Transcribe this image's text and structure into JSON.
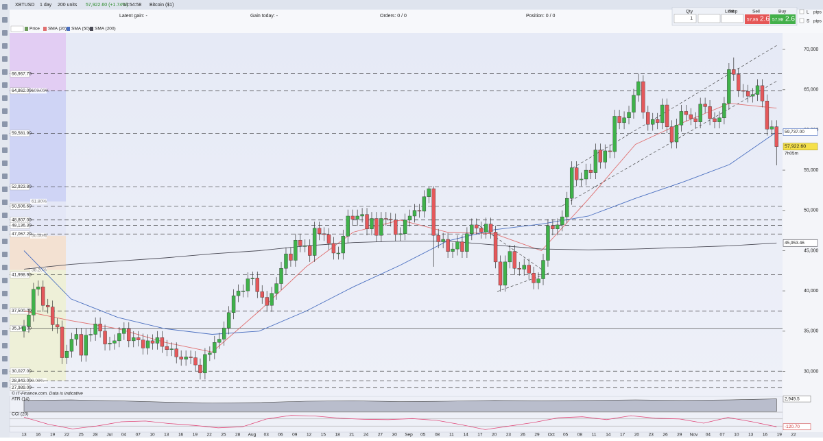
{
  "toolbar": {
    "symbol": "XBTUSD",
    "interval": "1 day",
    "units": "200 units",
    "price": "57,922.60 (+1.74%)",
    "time": "14:54:58",
    "instrument": "Bitcoin ($1)"
  },
  "status": {
    "latent_gain": "Latent gain: -",
    "gain_today": "Gain today: -",
    "orders": "Orders: 0 / 0",
    "position": "Position: 0 / 0"
  },
  "ticket": {
    "qty_label": "Qty",
    "qty": "1",
    "limit": "Limit",
    "stop": "Stop",
    "sell": "Sell",
    "buy": "Buy",
    "sell_price": "57,86",
    "sell_pips": "2.6",
    "buy_price": "57,98",
    "buy_pips": "2.6",
    "l": "L",
    "l_unit": "pips",
    "s": "S",
    "s_unit": "pips"
  },
  "chart_data": {
    "type": "candlestick",
    "price_label": "Price",
    "up_color": "#3fb24a",
    "down_color": "#e5585b",
    "ylim": [
      27400,
      72050
    ],
    "yticks": [
      {
        "value": 30000,
        "label": "30,000"
      },
      {
        "value": 35000,
        "label": "35,000"
      },
      {
        "value": 40000,
        "label": "40,000"
      },
      {
        "value": 45000,
        "label": "45,000"
      },
      {
        "value": 50000,
        "label": "50,000"
      },
      {
        "value": 55000,
        "label": "55,000"
      },
      {
        "value": 60000,
        "label": "60,000"
      },
      {
        "value": 65000,
        "label": "65,000"
      },
      {
        "value": 70000,
        "label": "70,000"
      }
    ],
    "x_labels": [
      "13",
      "16",
      "19",
      "22",
      "25",
      "28",
      "Jul",
      "04",
      "07",
      "10",
      "13",
      "16",
      "19",
      "22",
      "25",
      "28",
      "Aug",
      "03",
      "06",
      "09",
      "12",
      "15",
      "18",
      "21",
      "24",
      "27",
      "30",
      "Sep",
      "05",
      "08",
      "11",
      "14",
      "17",
      "20",
      "23",
      "26",
      "29",
      "Oct",
      "05",
      "08",
      "11",
      "14",
      "17",
      "20",
      "23",
      "26",
      "29",
      "Nov",
      "04",
      "07",
      "10",
      "13",
      "16",
      "19",
      "22"
    ],
    "candles": [
      [
        35000,
        36400,
        34200,
        35600
      ],
      [
        35600,
        37800,
        34800,
        37000
      ],
      [
        37000,
        41000,
        36200,
        40200
      ],
      [
        40200,
        41300,
        39400,
        40500
      ],
      [
        40500,
        41300,
        37400,
        38200
      ],
      [
        38200,
        39000,
        37200,
        38000
      ],
      [
        38000,
        38800,
        35000,
        35800
      ],
      [
        35800,
        36600,
        34700,
        35500
      ],
      [
        35500,
        36300,
        30900,
        31700
      ],
      [
        31700,
        33300,
        30900,
        32500
      ],
      [
        32500,
        34800,
        31700,
        34000
      ],
      [
        34000,
        35400,
        33200,
        34600
      ],
      [
        34600,
        35400,
        31200,
        32000
      ],
      [
        32000,
        35300,
        31200,
        34500
      ],
      [
        34500,
        35400,
        33700,
        34600
      ],
      [
        34600,
        36700,
        33800,
        35900
      ],
      [
        35900,
        36700,
        34200,
        35000
      ],
      [
        35000,
        35800,
        32600,
        33400
      ],
      [
        33400,
        34300,
        32600,
        33500
      ],
      [
        33500,
        34600,
        32700,
        33800
      ],
      [
        33800,
        35500,
        33000,
        34700
      ],
      [
        34700,
        36100,
        33900,
        35300
      ],
      [
        35300,
        36100,
        33000,
        33800
      ],
      [
        33800,
        35000,
        33000,
        34200
      ],
      [
        34200,
        35000,
        33100,
        33900
      ],
      [
        33900,
        34700,
        32100,
        32900
      ],
      [
        32900,
        34600,
        32100,
        33800
      ],
      [
        33800,
        34600,
        32700,
        33500
      ],
      [
        33500,
        35000,
        32700,
        34200
      ],
      [
        34200,
        35000,
        32300,
        33100
      ],
      [
        33100,
        33900,
        31900,
        32700
      ],
      [
        32700,
        33600,
        31900,
        32800
      ],
      [
        32800,
        33600,
        31000,
        31800
      ],
      [
        31800,
        32600,
        30700,
        31500
      ],
      [
        31500,
        32600,
        30700,
        31800
      ],
      [
        31800,
        32600,
        30900,
        31700
      ],
      [
        31700,
        32500,
        30000,
        30800
      ],
      [
        30800,
        31600,
        29000,
        29800
      ],
      [
        29800,
        32900,
        29000,
        32100
      ],
      [
        32100,
        33100,
        31300,
        32300
      ],
      [
        32300,
        34400,
        31500,
        33600
      ],
      [
        33600,
        34800,
        32800,
        34000
      ],
      [
        34000,
        36200,
        33200,
        35400
      ],
      [
        35400,
        38100,
        34600,
        37300
      ],
      [
        37300,
        40200,
        36500,
        39400
      ],
      [
        39400,
        40800,
        38600,
        40000
      ],
      [
        40000,
        40800,
        39200,
        40000
      ],
      [
        40000,
        42300,
        39200,
        41500
      ],
      [
        41500,
        42400,
        40700,
        41600
      ],
      [
        41600,
        42400,
        39100,
        39900
      ],
      [
        39900,
        40700,
        38400,
        39200
      ],
      [
        39200,
        40000,
        37400,
        38200
      ],
      [
        38200,
        40500,
        37400,
        39700
      ],
      [
        39700,
        41700,
        38900,
        40900
      ],
      [
        40900,
        43600,
        40100,
        42800
      ],
      [
        42800,
        45400,
        42000,
        44600
      ],
      [
        44600,
        45400,
        43000,
        43800
      ],
      [
        43800,
        47100,
        43000,
        46300
      ],
      [
        46300,
        47100,
        44800,
        45600
      ],
      [
        45600,
        46400,
        44800,
        45600
      ],
      [
        45600,
        46400,
        43600,
        44400
      ],
      [
        44400,
        48600,
        43600,
        47800
      ],
      [
        47800,
        48600,
        46300,
        47100
      ],
      [
        47100,
        47900,
        46200,
        47000
      ],
      [
        47000,
        47800,
        45100,
        45900
      ],
      [
        45900,
        46700,
        43900,
        44700
      ],
      [
        44700,
        45500,
        43900,
        44700
      ],
      [
        44700,
        47600,
        43900,
        46800
      ],
      [
        46800,
        50100,
        46000,
        49300
      ],
      [
        49300,
        50100,
        48100,
        48900
      ],
      [
        48900,
        50100,
        48100,
        49300
      ],
      [
        49300,
        50300,
        48500,
        49500
      ],
      [
        49500,
        50300,
        46900,
        47700
      ],
      [
        47700,
        49800,
        46900,
        49000
      ],
      [
        49000,
        49800,
        46100,
        46900
      ],
      [
        46900,
        49800,
        46100,
        49000
      ],
      [
        49000,
        49800,
        48100,
        48900
      ],
      [
        48900,
        49700,
        48000,
        48800
      ],
      [
        48800,
        49600,
        46200,
        47000
      ],
      [
        47000,
        47900,
        46200,
        47100
      ],
      [
        47100,
        49600,
        46300,
        48800
      ],
      [
        48800,
        50100,
        48000,
        49300
      ],
      [
        49300,
        50800,
        48500,
        50000
      ],
      [
        50000,
        50800,
        49100,
        49900
      ],
      [
        49900,
        52500,
        49100,
        51700
      ],
      [
        51700,
        52900,
        50900,
        52700
      ],
      [
        52700,
        53000,
        43000,
        46900
      ],
      [
        46900,
        47700,
        45300,
        46100
      ],
      [
        46100,
        47200,
        45300,
        46400
      ],
      [
        46400,
        47200,
        44100,
        44900
      ],
      [
        44900,
        46000,
        44100,
        45200
      ],
      [
        45200,
        46900,
        44400,
        46100
      ],
      [
        46100,
        46900,
        44100,
        44900
      ],
      [
        44900,
        47900,
        44100,
        47100
      ],
      [
        47100,
        49000,
        46300,
        48200
      ],
      [
        48200,
        49000,
        47000,
        47800
      ],
      [
        47800,
        48600,
        46500,
        47300
      ],
      [
        47300,
        49100,
        46500,
        48300
      ],
      [
        48300,
        49100,
        46500,
        47300
      ],
      [
        47300,
        48100,
        42800,
        43600
      ],
      [
        43600,
        44400,
        39900,
        40700
      ],
      [
        40700,
        44400,
        39900,
        43600
      ],
      [
        43600,
        45700,
        42800,
        44900
      ],
      [
        44900,
        45700,
        42000,
        42800
      ],
      [
        42800,
        43600,
        41900,
        42700
      ],
      [
        42700,
        44000,
        41900,
        43200
      ],
      [
        43200,
        44000,
        41400,
        42200
      ],
      [
        42200,
        43000,
        40200,
        41000
      ],
      [
        41000,
        42300,
        40200,
        41500
      ],
      [
        41500,
        44600,
        40700,
        43800
      ],
      [
        43800,
        48900,
        43000,
        48100
      ],
      [
        48100,
        48900,
        46900,
        47700
      ],
      [
        47700,
        49000,
        46900,
        48200
      ],
      [
        48200,
        50000,
        47400,
        49200
      ],
      [
        49200,
        52300,
        48400,
        51500
      ],
      [
        51500,
        56100,
        50700,
        55300
      ],
      [
        55300,
        56100,
        53000,
        53800
      ],
      [
        53800,
        54700,
        53000,
        53900
      ],
      [
        53900,
        55800,
        53100,
        55000
      ],
      [
        55000,
        55800,
        53900,
        54700
      ],
      [
        54700,
        58300,
        53900,
        57500
      ],
      [
        57500,
        58300,
        55200,
        56000
      ],
      [
        56000,
        58200,
        55200,
        57400
      ],
      [
        57400,
        58200,
        56500,
        57300
      ],
      [
        57300,
        62500,
        56500,
        61700
      ],
      [
        61700,
        62500,
        60100,
        60900
      ],
      [
        60900,
        62300,
        60100,
        61500
      ],
      [
        61500,
        63000,
        60700,
        62200
      ],
      [
        62200,
        65100,
        61400,
        64300
      ],
      [
        64300,
        67000,
        63500,
        66000
      ],
      [
        66000,
        66800,
        61400,
        62200
      ],
      [
        62200,
        63000,
        59900,
        60700
      ],
      [
        60700,
        62100,
        59900,
        61300
      ],
      [
        61300,
        62100,
        60100,
        60900
      ],
      [
        60900,
        63900,
        60100,
        63100
      ],
      [
        63100,
        63900,
        59600,
        60400
      ],
      [
        60400,
        61200,
        57700,
        58500
      ],
      [
        58500,
        61400,
        57700,
        60600
      ],
      [
        60600,
        63100,
        59800,
        62300
      ],
      [
        62300,
        63100,
        61100,
        61900
      ],
      [
        61900,
        62700,
        60600,
        61400
      ],
      [
        61400,
        62200,
        60200,
        61000
      ],
      [
        61000,
        64000,
        60200,
        63200
      ],
      [
        63200,
        64000,
        62100,
        62900
      ],
      [
        62900,
        63700,
        60600,
        61400
      ],
      [
        61400,
        62200,
        60200,
        61000
      ],
      [
        61000,
        62300,
        60200,
        61500
      ],
      [
        61500,
        64100,
        60700,
        63300
      ],
      [
        63300,
        68300,
        62500,
        67500
      ],
      [
        67500,
        69000,
        66100,
        66900
      ],
      [
        66900,
        67700,
        64100,
        64900
      ],
      [
        64900,
        65700,
        64000,
        64800
      ],
      [
        64800,
        65600,
        63400,
        64200
      ],
      [
        64200,
        65200,
        63400,
        64400
      ],
      [
        64400,
        66300,
        63600,
        65500
      ],
      [
        65500,
        66300,
        62800,
        63600
      ],
      [
        63600,
        64400,
        59300,
        60100
      ],
      [
        60100,
        61200,
        59300,
        60400
      ],
      [
        60400,
        61200,
        55600,
        57922.6
      ]
    ],
    "last_price_label": "57,922.60",
    "countdown": "7h05m",
    "sma": [
      {
        "name": "SMA (20)",
        "color": "#e07070",
        "values": [
          37500,
          36300,
          35300,
          33600,
          32400,
          37500,
          43000,
          47300,
          48800,
          47300,
          47100,
          45000,
          51400,
          58200,
          60900,
          63300,
          62700
        ]
      },
      {
        "name": "SMA (50)",
        "color": "#4a6fc0",
        "values": [
          45000,
          39000,
          36700,
          35300,
          34600,
          35000,
          37500,
          40500,
          43200,
          46200,
          47600,
          48300,
          49300,
          51500,
          53500,
          55700,
          59737
        ],
        "last_label": "59,737.00"
      },
      {
        "name": "SMA (200)",
        "color": "#4a4a55",
        "values": [
          42700,
          43300,
          43700,
          44100,
          44600,
          45000,
          45600,
          46000,
          46200,
          46200,
          45700,
          45200,
          45100,
          45200,
          45400,
          45600,
          45953.46
        ],
        "last_label": "45,953.46"
      }
    ],
    "levels": [
      {
        "value": 66967.7,
        "label": "66,967.70"
      },
      {
        "value": 64862,
        "label": "64,862.00"
      },
      {
        "value": 59581.9,
        "label": "59,581.90"
      },
      {
        "value": 52923.8,
        "label": "52,923.80"
      },
      {
        "value": 50506.6,
        "label": "50,506.60"
      },
      {
        "value": 48807,
        "label": "48,807.00"
      },
      {
        "value": 48136.3,
        "label": "48,136.30"
      },
      {
        "value": 47067.2,
        "label": "47,067.20"
      },
      {
        "value": 41998.9,
        "label": "41,998.90"
      },
      {
        "value": 37500,
        "label": "37,500.00"
      },
      {
        "value": 35340,
        "label": "35,340.00",
        "solid": true
      },
      {
        "value": 30027,
        "label": "30,027.00"
      },
      {
        "value": 28843,
        "label": "28,843.00"
      },
      {
        "value": 27989,
        "label": "27,989.00"
      }
    ],
    "fib": [
      {
        "value": 100,
        "label": "100.00%"
      },
      {
        "value": 61.8,
        "label": "61.80%"
      },
      {
        "value": 50,
        "label": "50.00%"
      },
      {
        "value": 38.2,
        "label": "38.20%"
      },
      {
        "value": 0,
        "label": "0.00%"
      }
    ],
    "source": "© IT-Finance.com. Data is indicative",
    "atr": {
      "name": "ATR (14)",
      "ylim": [
        0,
        3200
      ],
      "values": [
        2600,
        2700,
        2500,
        2200,
        2000,
        2100,
        2400,
        2500,
        2300,
        2400,
        2600,
        2500,
        2600,
        2700,
        2600,
        2700,
        2949.5
      ],
      "last_label": "2,949.5"
    },
    "cci": {
      "name": "CCI (20)",
      "ylim": [
        -250,
        250
      ],
      "yticks": [
        -100,
        100
      ],
      "values": [
        150,
        -50,
        -180,
        -100,
        20,
        40,
        -30,
        -80,
        -150,
        -120,
        100,
        200,
        180,
        120,
        90,
        80,
        110,
        60,
        -60,
        -200,
        -100,
        0,
        130,
        160,
        80,
        190,
        120,
        100,
        -20,
        140,
        20,
        -120.7
      ],
      "last_label": "-120.70"
    }
  }
}
